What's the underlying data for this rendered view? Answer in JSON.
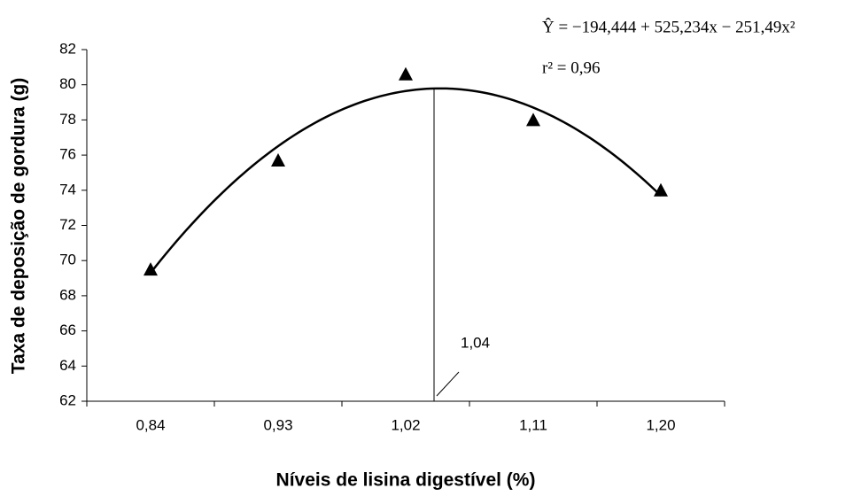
{
  "chart_data": {
    "type": "scatter",
    "x_label": "Níveis de lisina digestível (%)",
    "y_label": "Taxa de deposição de gordura (g)",
    "x": [
      0.84,
      0.93,
      1.02,
      1.11,
      1.2
    ],
    "values": [
      69.5,
      75.7,
      80.6,
      78.0,
      74.0
    ],
    "color": "#000000",
    "xlim": [
      0.795,
      1.245
    ],
    "xticks": [
      {
        "value": 0.84,
        "label": "0,84"
      },
      {
        "value": 0.93,
        "label": "0,93"
      },
      {
        "value": 1.02,
        "label": "1,02"
      },
      {
        "value": 1.11,
        "label": "1,11"
      },
      {
        "value": 1.2,
        "label": "1,20"
      }
    ],
    "ylim": [
      62,
      82
    ],
    "yticks": [
      62,
      64,
      66,
      68,
      70,
      72,
      74,
      76,
      78,
      80,
      82
    ],
    "fit": {
      "coefficients": [
        -194.444,
        525.234,
        -251.49
      ],
      "equation": "Ŷ = −194,444 + 525,234x − 251,49x²",
      "r_squared": "r² = 0,96"
    },
    "vline": {
      "value": 1.04,
      "label": "1,04"
    }
  }
}
